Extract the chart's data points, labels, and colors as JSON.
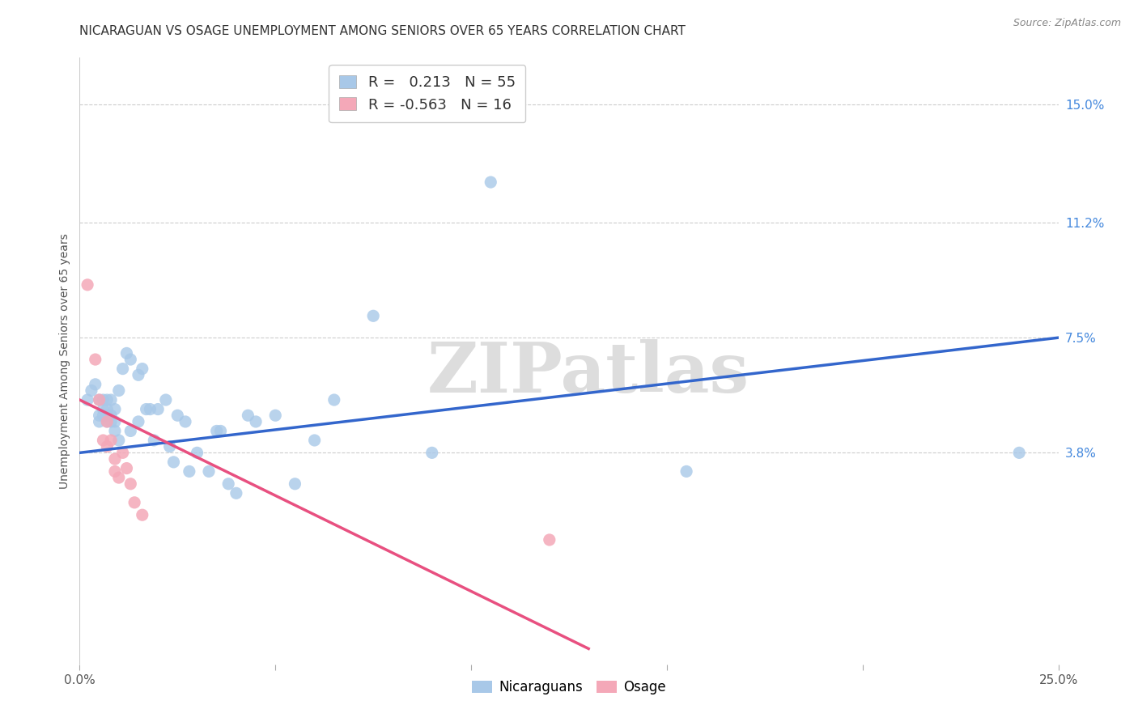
{
  "title": "NICARAGUAN VS OSAGE UNEMPLOYMENT AMONG SENIORS OVER 65 YEARS CORRELATION CHART",
  "source": "Source: ZipAtlas.com",
  "ylabel": "Unemployment Among Seniors over 65 years",
  "xlim": [
    0.0,
    0.25
  ],
  "ylim": [
    -0.03,
    0.165
  ],
  "right_yticks": [
    0.038,
    0.075,
    0.112,
    0.15
  ],
  "right_yticklabels": [
    "3.8%",
    "7.5%",
    "11.2%",
    "15.0%"
  ],
  "nicaraguan_color": "#a8c8e8",
  "osage_color": "#f4a8b8",
  "nicaraguan_line_color": "#3366cc",
  "osage_line_color": "#e85080",
  "R_nicaraguan": 0.213,
  "N_nicaraguan": 55,
  "R_osage": -0.563,
  "N_osage": 16,
  "background_color": "#ffffff",
  "watermark_text": "ZIPatlas",
  "nicaraguan_x": [
    0.002,
    0.003,
    0.004,
    0.005,
    0.005,
    0.005,
    0.006,
    0.006,
    0.006,
    0.007,
    0.007,
    0.007,
    0.007,
    0.008,
    0.008,
    0.008,
    0.009,
    0.009,
    0.009,
    0.01,
    0.01,
    0.011,
    0.012,
    0.013,
    0.013,
    0.015,
    0.015,
    0.016,
    0.017,
    0.018,
    0.019,
    0.02,
    0.022,
    0.023,
    0.024,
    0.025,
    0.027,
    0.028,
    0.03,
    0.033,
    0.035,
    0.036,
    0.038,
    0.04,
    0.043,
    0.045,
    0.05,
    0.055,
    0.06,
    0.065,
    0.075,
    0.09,
    0.105,
    0.155,
    0.24
  ],
  "nicaraguan_y": [
    0.055,
    0.058,
    0.06,
    0.055,
    0.05,
    0.048,
    0.055,
    0.052,
    0.05,
    0.055,
    0.052,
    0.05,
    0.048,
    0.055,
    0.05,
    0.048,
    0.052,
    0.048,
    0.045,
    0.058,
    0.042,
    0.065,
    0.07,
    0.068,
    0.045,
    0.063,
    0.048,
    0.065,
    0.052,
    0.052,
    0.042,
    0.052,
    0.055,
    0.04,
    0.035,
    0.05,
    0.048,
    0.032,
    0.038,
    0.032,
    0.045,
    0.045,
    0.028,
    0.025,
    0.05,
    0.048,
    0.05,
    0.028,
    0.042,
    0.055,
    0.082,
    0.038,
    0.125,
    0.032,
    0.038
  ],
  "osage_x": [
    0.002,
    0.004,
    0.005,
    0.006,
    0.007,
    0.007,
    0.008,
    0.009,
    0.009,
    0.01,
    0.011,
    0.012,
    0.013,
    0.014,
    0.016,
    0.12
  ],
  "osage_y": [
    0.092,
    0.068,
    0.055,
    0.042,
    0.048,
    0.04,
    0.042,
    0.036,
    0.032,
    0.03,
    0.038,
    0.033,
    0.028,
    0.022,
    0.018,
    0.01
  ],
  "nic_line_x0": 0.0,
  "nic_line_y0": 0.038,
  "nic_line_x1": 0.25,
  "nic_line_y1": 0.075,
  "osage_line_x0": 0.0,
  "osage_line_y0": 0.055,
  "osage_line_x1": 0.13,
  "osage_line_y1": -0.025,
  "grid_color": "#cccccc",
  "tick_fontsize": 11,
  "legend_fontsize": 13
}
